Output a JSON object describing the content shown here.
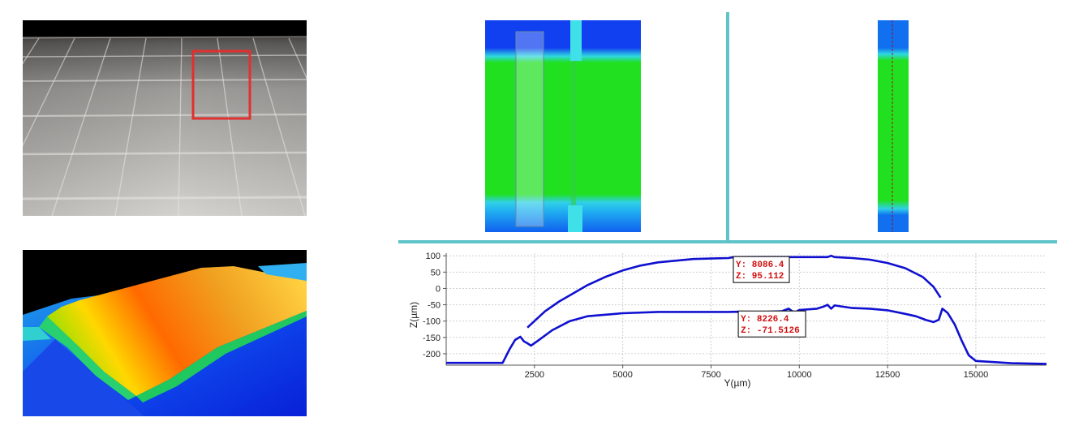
{
  "images": {
    "photo": "photo-of-tiled-surface-with-red-box",
    "render3d": "3d-height-map-render",
    "heatmap_left": "height-heatmap-with-selection-band",
    "heatmap_right": "height-heatmap-narrow-strip"
  },
  "colors": {
    "divider": "#5fc4c8",
    "series": "#1010d0",
    "annotation_text": "#d01010",
    "selection_box": "#e03030",
    "heat_low": "#1030f0",
    "heat_mid": "#20e020",
    "heat_edge": "#30c0e8"
  },
  "chart_data": {
    "type": "line",
    "xlabel": "Y(µm)",
    "ylabel": "Z(µm)",
    "xlim": [
      0,
      17000
    ],
    "ylim": [
      -235,
      108
    ],
    "xticks": [
      2500,
      5000,
      7500,
      10000,
      12500,
      15000
    ],
    "yticks": [
      100,
      50,
      0,
      -50,
      -100,
      -150,
      -200
    ],
    "grid": true,
    "series": [
      {
        "x": [
          2300,
          2500,
          2800,
          3200,
          3600,
          4000,
          4500,
          5000,
          5500,
          6000,
          7000,
          8000,
          8086.4,
          9000,
          10000,
          10800,
          10900,
          11000,
          11500,
          12000,
          12500,
          13000,
          13500,
          13800,
          14000
        ],
        "y": [
          -120,
          -100,
          -70,
          -40,
          -15,
          10,
          35,
          55,
          70,
          80,
          90,
          93,
          95.112,
          96,
          96,
          96,
          100,
          96,
          93,
          88,
          78,
          62,
          35,
          5,
          -28
        ]
      },
      {
        "x": [
          0,
          1000,
          1600,
          1800,
          1950,
          2100,
          2200,
          2300,
          2400,
          2600,
          3000,
          3500,
          4000,
          5000,
          6000,
          7000,
          8000,
          8226.4,
          9000,
          9500,
          9700,
          9800,
          9900,
          10000,
          10500,
          10700,
          10800,
          10900,
          11000,
          11500,
          12000,
          12500,
          13000,
          13300,
          13600,
          13800,
          13950,
          14050,
          14200,
          14400,
          14600,
          14800,
          15000,
          16000,
          17000
        ],
        "y": [
          -228,
          -228,
          -228,
          -185,
          -158,
          -148,
          -162,
          -168,
          -175,
          -160,
          -128,
          -100,
          -85,
          -76,
          -72,
          -72,
          -72,
          -71.5126,
          -72,
          -70,
          -62,
          -70,
          -72,
          -66,
          -62,
          -55,
          -50,
          -62,
          -52,
          -60,
          -62,
          -67,
          -78,
          -85,
          -97,
          -103,
          -96,
          -62,
          -75,
          -110,
          -160,
          -205,
          -222,
          -229,
          -231
        ]
      }
    ],
    "annotations": [
      {
        "line1": "Y: 8086.4",
        "line2": "Z: 95.112",
        "x": 8086.4,
        "y": 95.112
      },
      {
        "line1": "Y: 8226.4",
        "line2": "Z: -71.5126",
        "x": 8226.4,
        "y": -71.5126
      }
    ]
  }
}
